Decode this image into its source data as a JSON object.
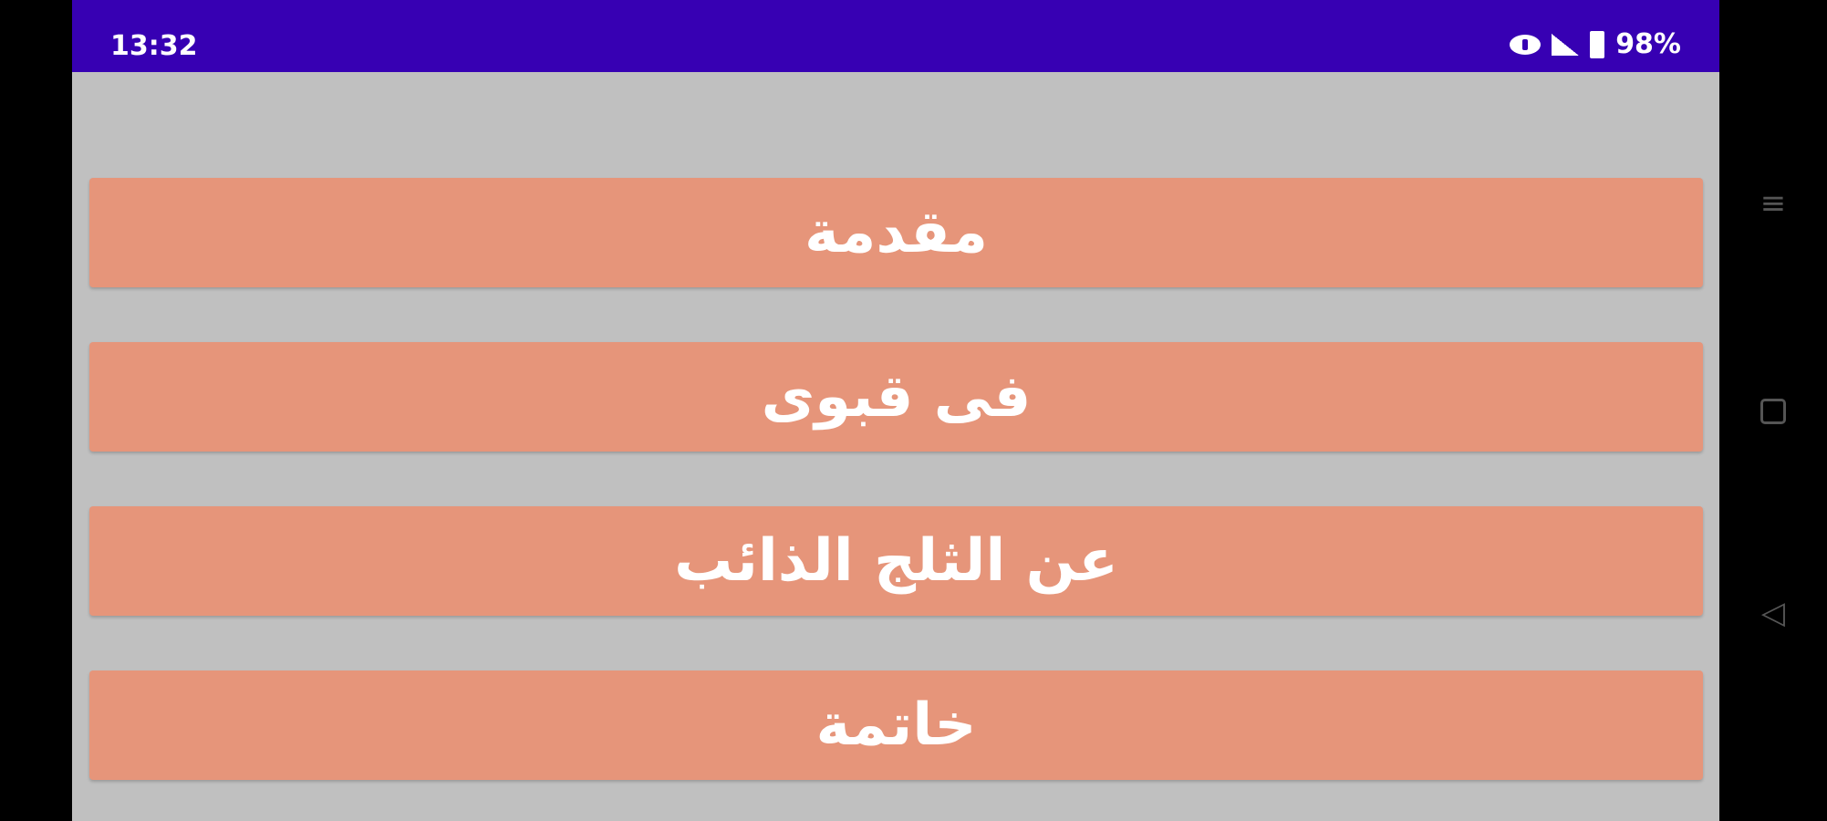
{
  "status_bar": {
    "time": "13:32",
    "battery": "98%",
    "bg_color": "#3700b3"
  },
  "menu": {
    "items": [
      {
        "label": "مقدمة"
      },
      {
        "label": "فى قبوى"
      },
      {
        "label": "عن الثلج الذائب"
      },
      {
        "label": "خاتمة"
      }
    ],
    "button_color": "#e6957a"
  },
  "nav_bar": {
    "menu": "≡",
    "back": "◁"
  }
}
